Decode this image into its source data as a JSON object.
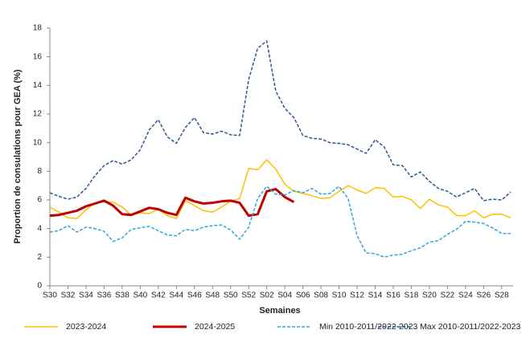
{
  "chart_data": {
    "type": "line",
    "y_label": "Proportion de consulations pour GEA (%)",
    "x_label": "Semaines",
    "categories": [
      "S30",
      null,
      "S32",
      null,
      "S34",
      null,
      "S36",
      null,
      "S38",
      null,
      "S40",
      null,
      "S42",
      null,
      "S44",
      null,
      "S46",
      null,
      "S48",
      null,
      "S50",
      null,
      "S52",
      null,
      "S02",
      null,
      "S04",
      null,
      "S06",
      null,
      "S08",
      null,
      "S10",
      null,
      "S12",
      null,
      "S14",
      null,
      "S16",
      null,
      "S18",
      null,
      "S20",
      null,
      "S22",
      null,
      "S24",
      null,
      "S26",
      null,
      "S28",
      null
    ],
    "ylim": [
      0,
      18
    ],
    "yticks": [
      0,
      2,
      4,
      6,
      8,
      10,
      12,
      14,
      16,
      18
    ],
    "grid": false,
    "legend": "bottom",
    "series": [
      {
        "name": "2023-2024",
        "color": "#ffc000",
        "dashed": false,
        "width": 1.5,
        "values": [
          5.5,
          5.15,
          4.75,
          4.7,
          5.3,
          5.8,
          5.85,
          5.85,
          5.5,
          4.95,
          5.1,
          5.05,
          5.35,
          4.9,
          4.7,
          5.95,
          5.6,
          5.25,
          5.15,
          5.5,
          5.9,
          6.1,
          8.2,
          8.1,
          8.8,
          8.15,
          7.1,
          6.6,
          6.45,
          6.3,
          6.1,
          6.15,
          6.6,
          7.0,
          6.7,
          6.45,
          6.85,
          6.8,
          6.2,
          6.25,
          6.0,
          5.4,
          6.05,
          5.65,
          5.5,
          4.9,
          4.9,
          5.25,
          4.75,
          5.0,
          5.0,
          4.75
        ]
      },
      {
        "name": "2024-2025",
        "color": "#c00000",
        "dashed": false,
        "width": 3,
        "values": [
          4.9,
          4.95,
          5.1,
          5.25,
          5.55,
          5.75,
          5.95,
          5.6,
          5.0,
          4.95,
          5.2,
          5.45,
          5.35,
          5.1,
          4.95,
          6.15,
          5.9,
          5.75,
          5.8,
          5.9,
          5.95,
          5.8,
          4.9,
          5.0,
          6.6,
          6.75,
          6.2,
          5.85,
          null,
          null,
          null,
          null,
          null,
          null,
          null,
          null,
          null,
          null,
          null,
          null,
          null,
          null,
          null,
          null,
          null,
          null,
          null,
          null,
          null,
          null,
          null,
          null
        ]
      },
      {
        "name": "Min 2010-2011/2022-2023",
        "color": "#2ea7e0",
        "dashed": true,
        "width": 1.5,
        "values": [
          3.75,
          3.85,
          4.2,
          3.75,
          4.1,
          4.0,
          3.8,
          3.1,
          3.35,
          3.95,
          4.05,
          4.15,
          3.85,
          3.55,
          3.5,
          3.95,
          3.85,
          4.1,
          4.2,
          4.25,
          3.9,
          3.25,
          4.1,
          6.1,
          6.95,
          6.4,
          6.35,
          6.65,
          6.5,
          6.8,
          6.4,
          6.45,
          6.95,
          6.1,
          3.5,
          2.3,
          2.25,
          2.0,
          2.15,
          2.2,
          2.45,
          2.65,
          3.05,
          3.15,
          3.6,
          3.95,
          4.5,
          4.45,
          4.35,
          4.05,
          3.65,
          3.65
        ]
      },
      {
        "name": "Max 2010-2011/2022-2023",
        "color": "#2f5597",
        "dashed": true,
        "width": 1.5,
        "values": [
          6.5,
          6.25,
          6.05,
          6.2,
          6.8,
          7.7,
          8.4,
          8.75,
          8.5,
          8.8,
          9.5,
          10.9,
          11.6,
          10.4,
          9.95,
          11.05,
          11.75,
          10.7,
          10.6,
          10.8,
          10.55,
          10.5,
          14.4,
          16.6,
          17.1,
          13.6,
          12.4,
          11.75,
          10.5,
          10.3,
          10.25,
          10.0,
          9.95,
          9.85,
          9.55,
          9.25,
          10.2,
          9.7,
          8.45,
          8.4,
          7.6,
          7.95,
          7.3,
          6.8,
          6.6,
          6.2,
          6.5,
          6.8,
          5.95,
          6.05,
          6.0,
          6.55
        ]
      }
    ]
  }
}
